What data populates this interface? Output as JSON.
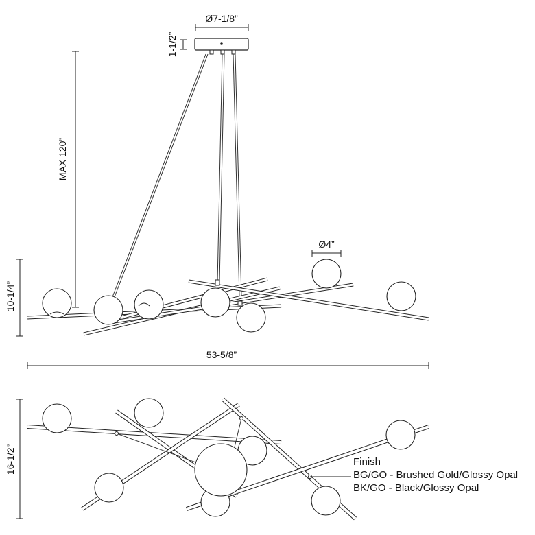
{
  "dimensions": {
    "canopy_diameter": "Ø7-1/8”",
    "canopy_height": "1-1/2”",
    "max_height": "MAX 120”",
    "globe_diameter": "Ø4”",
    "fixture_height": "10-1/4”",
    "fixture_width": "53-5/8”",
    "fixture_depth": "16-1/2”"
  },
  "finish": {
    "title": "Finish",
    "options": [
      "BG/GO - Brushed Gold/Glossy Opal",
      "BK/GO - Black/Glossy Opal"
    ]
  }
}
